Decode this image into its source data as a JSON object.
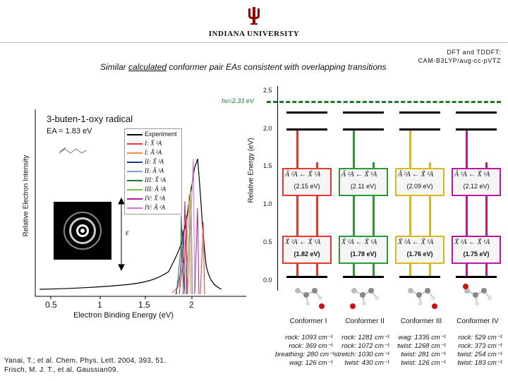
{
  "header": {
    "university": "INDIANA UNIVERSITY",
    "method_line1": "DFT and TDDFT:",
    "method_line2": "CAM-B3LYP/aug-cc-pVTZ",
    "subtitle_pre": "Similar ",
    "subtitle_underlined": "calculated",
    "subtitle_post": " conformer pair EAs consistent with overlapping transitions"
  },
  "spectrum": {
    "title": "3-buten-1-oxy radical",
    "ea": "EA = 1.83 eV",
    "ylabel": "Relative Electron Intensity",
    "xlabel": "Electron Binding Energy (eV)",
    "xticks": [
      "0.5",
      "1",
      "1.5",
      "2"
    ],
    "legend": [
      {
        "label": "Experiment",
        "color": "#000000"
      },
      {
        "label": "I: X̃ ²A",
        "color": "#e8382c"
      },
      {
        "label": "I: Ã ²A",
        "color": "#f08a3c"
      },
      {
        "label": "II: X̃ ²A",
        "color": "#1f3a93"
      },
      {
        "label": "II: Ã ²A",
        "color": "#8a9adf"
      },
      {
        "label": "III: X̃ ²A",
        "color": "#1d7a2a"
      },
      {
        "label": "III: Ã ²A",
        "color": "#7ac943"
      },
      {
        "label": "IV: X̃ ²A",
        "color": "#c0169b"
      },
      {
        "label": "IV: Ã ²A",
        "color": "#e36fd3"
      }
    ],
    "e_label": "ε"
  },
  "energy_diagram": {
    "ylabel": "Relative Energy (eV)",
    "yticks": [
      "2.5",
      "2.0",
      "1.5",
      "1.0",
      "0.5",
      "0.0"
    ],
    "hv_label": "hν=2.33 eV",
    "conformers": [
      {
        "name": "Conformer I",
        "color": "#e8382c",
        "upper_trans": "Ã ²A ← X̃ ¹A",
        "upper_val": "(2.15 eV)",
        "lower_trans": "X̃ ²A ← X̃ ¹A",
        "lower_val": "(1.82 eV)",
        "vibs": [
          "rock: 1093 cm⁻¹",
          "rock: 369 cm⁻¹",
          "breathing: 280 cm⁻¹",
          "wag: 126 cm⁻¹"
        ]
      },
      {
        "name": "Conformer II",
        "color": "#2a9b34",
        "upper_trans": "Ã ²A ← X̃ ¹A",
        "upper_val": "(2.11 eV)",
        "lower_trans": "X̃ ²A ← X̃ ¹A",
        "lower_val": "(1.78 eV)",
        "vibs": [
          "rock: 1281 cm⁻¹",
          "rock: 1072 cm⁻¹",
          "stretch: 1030 cm⁻¹",
          "twist: 430 cm⁻¹"
        ]
      },
      {
        "name": "Conformer III",
        "color": "#d6b91a",
        "upper_trans": "Ã ²A ← X̃ ¹A",
        "upper_val": "(2.09 eV)",
        "lower_trans": "X̃ ²A ← X̃ ¹A",
        "lower_val": "(1.76 eV)",
        "vibs": [
          "wag: 1335 cm⁻¹",
          "twist: 1268 cm⁻¹",
          "twist: 281 cm⁻¹",
          "twist: 126 cm⁻¹"
        ]
      },
      {
        "name": "Conformer IV",
        "color": "#c0169b",
        "upper_trans": "Ã ²A ← X̃ ¹A",
        "upper_val": "(2.12 eV)",
        "lower_trans": "X̃ ²A ← X̃ ¹A",
        "lower_val": "(1.75 eV)",
        "vibs": [
          "rock: 529 cm⁻¹",
          "rock: 373 cm⁻¹",
          "twist: 254 cm⁻¹",
          "twist: 183 cm⁻¹"
        ]
      }
    ]
  },
  "references": {
    "ref1": "Yanai, T.; et al. Chem. Phys. Lett. 2004, 393, 51.",
    "ref2": "Frisch, M. J. T., et al. Gaussian09."
  }
}
